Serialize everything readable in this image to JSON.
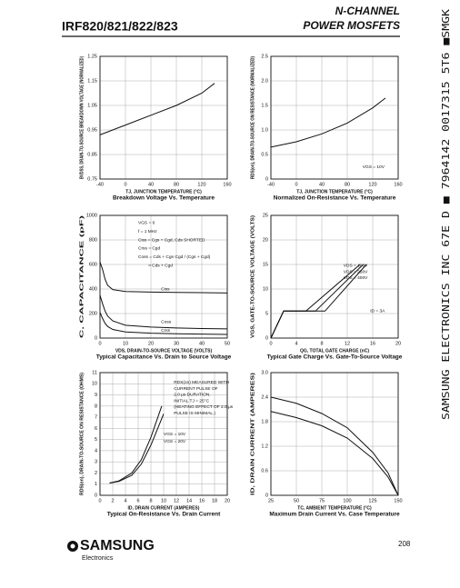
{
  "header": {
    "part_number": "IRF820/821/822/823",
    "line1": "N-CHANNEL",
    "line2": "POWER MOSFETS"
  },
  "side_text": "SAMSUNG ELECTRONICS INC   67E D ■ 7964142 0017315 5T6 ■SMGK",
  "footer": {
    "brand": "SAMSUNG",
    "sub": "Electronics",
    "page": "208"
  },
  "chart_data": [
    {
      "type": "line",
      "title": "Breakdown Voltage Vs. Temperature",
      "xlabel": "TJ, JUNCTION TEMPERATURE (°C)",
      "ylabel": "BVDSS, DRAIN-TO-SOURCE BREAKDOWN VOLTAGE (NORMALIZED)",
      "xlim": [
        -40,
        160
      ],
      "xticks": [
        -40,
        0,
        40,
        80,
        120,
        160
      ],
      "ylim": [
        0.75,
        1.25
      ],
      "yticks": [
        0.75,
        0.85,
        0.95,
        1.05,
        1.15,
        1.25
      ],
      "grid": true,
      "color": "#111111",
      "series": [
        {
          "x": [
            -40,
            0,
            40,
            80,
            120,
            140
          ],
          "values": [
            0.93,
            0.97,
            1.01,
            1.05,
            1.1,
            1.14
          ]
        }
      ],
      "annotations": []
    },
    {
      "type": "line",
      "title": "Normalized On-Resistance Vs. Temperature",
      "xlabel": "TJ, JUNCTION TEMPERATURE (°C)",
      "ylabel": "RDS(on), DRAIN-TO-SOURCE ON RESISTANCE (NORMALIZED)",
      "xlim": [
        -40,
        160
      ],
      "xticks": [
        -40,
        0,
        40,
        80,
        120,
        160
      ],
      "ylim": [
        0,
        2.5
      ],
      "yticks": [
        0,
        0.5,
        {
          "value": 1,
          "label": "1.0"
        },
        1.5,
        {
          "value": 2,
          "label": "2.0"
        },
        2.5
      ],
      "grid": true,
      "color": "#111111",
      "series": [
        {
          "x": [
            -40,
            0,
            40,
            80,
            120,
            140
          ],
          "values": [
            0.65,
            0.76,
            0.92,
            1.14,
            1.45,
            1.65
          ]
        }
      ],
      "annotations": [
        "VGS = 10V"
      ]
    },
    {
      "type": "line",
      "title": "Typical Capacitance Vs. Drain to Source Voltage",
      "xlabel": "VDS, DRAIN-TO-SOURCE VOLTAGE (VOLTS)",
      "ylabel": "C, CAPACITANCE (pF)",
      "xlim": [
        0,
        50
      ],
      "xticks": [
        0,
        10,
        20,
        30,
        40,
        50
      ],
      "ylim": [
        0,
        1000
      ],
      "yticks": [
        0,
        200,
        400,
        600,
        800,
        1000
      ],
      "grid": true,
      "color": "#111111",
      "series": [
        {
          "name": "Ciss",
          "x": [
            0,
            1,
            2,
            3,
            5,
            10,
            20,
            30,
            40,
            50
          ],
          "values": [
            620,
            560,
            480,
            430,
            395,
            380,
            375,
            372,
            370,
            368
          ]
        },
        {
          "name": "Coss",
          "x": [
            0,
            1,
            2,
            3,
            5,
            10,
            20,
            30,
            40,
            50
          ],
          "values": [
            350,
            280,
            220,
            180,
            140,
            105,
            90,
            82,
            78,
            75
          ]
        },
        {
          "name": "Crss",
          "x": [
            0,
            1,
            2,
            3,
            5,
            10,
            20,
            30,
            40,
            50
          ],
          "values": [
            210,
            160,
            120,
            95,
            70,
            50,
            40,
            35,
            32,
            30
          ]
        }
      ],
      "annotations": [
        "VGS = 0",
        "f = 1 MHz",
        "Ciss = Cgs + Cgd, Cds SHORTED",
        "Crss = Cgd",
        "Coss = Cds + Cgs·Cgd / (Cgs + Cgd)",
        "≈ Cds + Cgd"
      ]
    },
    {
      "type": "line",
      "title": "Typical Gate Charge Vs. Gate-To-Source Voltage",
      "xlabel": "QG, TOTAL GATE CHARGE (nC)",
      "ylabel": "VGS, GATE-TO-SOURCE VOLTAGE (VOLTS)",
      "xlim": [
        0,
        20
      ],
      "xticks": [
        0,
        4,
        8,
        12,
        16,
        20
      ],
      "ylim": [
        0,
        25
      ],
      "yticks": [
        0,
        5,
        10,
        15,
        20,
        25
      ],
      "grid": true,
      "color": "#111111",
      "series": [
        {
          "name": "VDS = 100V",
          "x": [
            0,
            2,
            5.5,
            14
          ],
          "values": [
            0,
            5.5,
            5.5,
            15
          ]
        },
        {
          "name": "VDS = 250V",
          "x": [
            0,
            2,
            7,
            14.5
          ],
          "values": [
            0,
            5.5,
            5.5,
            15
          ]
        },
        {
          "name": "VDS = 400V",
          "x": [
            0,
            2,
            8.5,
            15
          ],
          "values": [
            0,
            5.5,
            5.5,
            15
          ]
        }
      ],
      "annotations": [
        "ID = 3A"
      ]
    },
    {
      "type": "line",
      "title": "Typical On-Resistance Vs. Drain Current",
      "xlabel": "ID, DRAIN CURRENT (AMPERES)",
      "ylabel": "RDS(on), DRAIN-TO-SOURCE ON RESISTANCE (OHMS)",
      "xlim": [
        0,
        20
      ],
      "xticks": [
        0,
        2,
        4,
        6,
        8,
        10,
        12,
        14,
        16,
        18,
        20
      ],
      "ylim": [
        0,
        11
      ],
      "yticks": [
        0,
        1,
        2,
        3,
        4,
        5,
        6,
        7,
        8,
        9,
        10,
        11
      ],
      "grid": true,
      "color": "#111111",
      "series": [
        {
          "name": "VGS = 10V",
          "x": [
            1.5,
            3,
            5,
            6.5,
            8,
            9.7
          ],
          "values": [
            1.1,
            1.3,
            2,
            3.2,
            5.2,
            8
          ]
        },
        {
          "name": "VGS = 20V",
          "x": [
            1.5,
            3,
            5,
            6.5,
            8,
            10
          ],
          "values": [
            1.1,
            1.25,
            1.8,
            2.8,
            4.5,
            7.3
          ]
        }
      ],
      "annotations": [
        "RDS(on) MEASURED WITH",
        "CURRENT PULSE OF",
        "2.0 μs DURATION.",
        "INITIAL TJ = 25°C",
        "(HEATING EFFECT OF 2.0 μs",
        "PULSE IS MINIMAL.)"
      ]
    },
    {
      "type": "line",
      "title": "Maximum Drain Current Vs. Case Temperature",
      "xlabel": "TC, AMBIENT TEMPERATURE (°C)",
      "ylabel": "ID, DRAIN CURRENT (AMPERES)",
      "xlim": [
        25,
        150
      ],
      "xticks": [
        25,
        50,
        75,
        100,
        125,
        150
      ],
      "ylim": [
        0,
        3
      ],
      "yticks": [
        0,
        0.6,
        1.2,
        1.8,
        2.4,
        {
          "value": 3,
          "label": "3.0"
        }
      ],
      "grid": true,
      "color": "#111111",
      "series": [
        {
          "x": [
            25,
            50,
            75,
            100,
            125,
            140,
            150
          ],
          "values": [
            2.4,
            2.25,
            2,
            1.65,
            1.05,
            0.55,
            0
          ]
        },
        {
          "x": [
            25,
            50,
            75,
            100,
            125,
            140,
            150
          ],
          "values": [
            2.05,
            1.9,
            1.7,
            1.4,
            0.9,
            0.45,
            0
          ]
        }
      ],
      "annotations": []
    }
  ]
}
